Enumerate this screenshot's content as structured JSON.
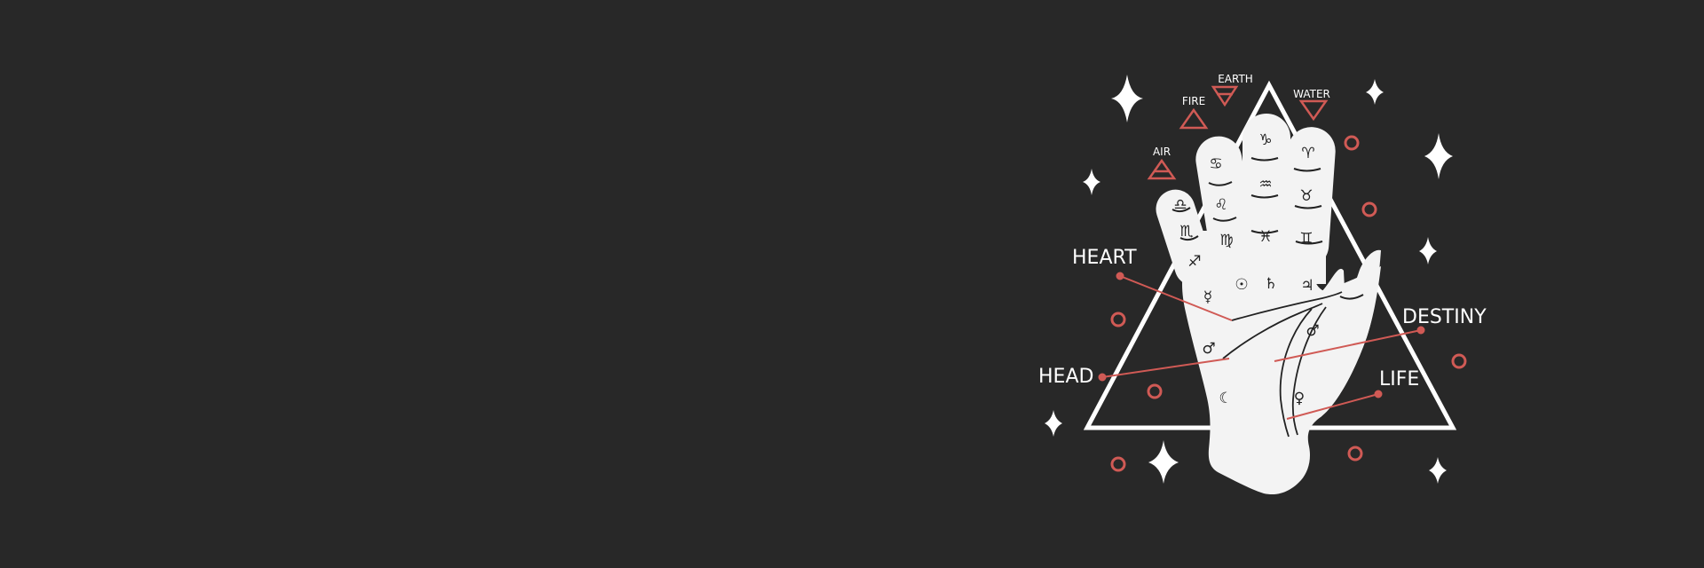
{
  "colors": {
    "background": "#282828",
    "foreground": "#ffffff",
    "accent": "#d05a55",
    "ink": "#222222"
  },
  "illustration": {
    "elements": {
      "air": "AIR",
      "fire": "FIRE",
      "earth": "EARTH",
      "water": "WATER"
    },
    "lines": {
      "heart": "HEART",
      "head": "HEAD",
      "destiny": "DESTINY",
      "life": "LIFE"
    },
    "icons": [
      "sparkle-icon",
      "ring-icon",
      "triangle-icon",
      "palm-hand-icon"
    ],
    "zodiac_signs": {
      "little": [
        "♎",
        "♏",
        "♐"
      ],
      "ring": [
        "♋",
        "♌",
        "♍"
      ],
      "middle": [
        "♑",
        "♒",
        "♓"
      ],
      "index": [
        "♈",
        "♉",
        "♊"
      ]
    },
    "planets": [
      "☿",
      "☉",
      "♄",
      "♃",
      "♂",
      "♂",
      "☾",
      "♀"
    ]
  }
}
